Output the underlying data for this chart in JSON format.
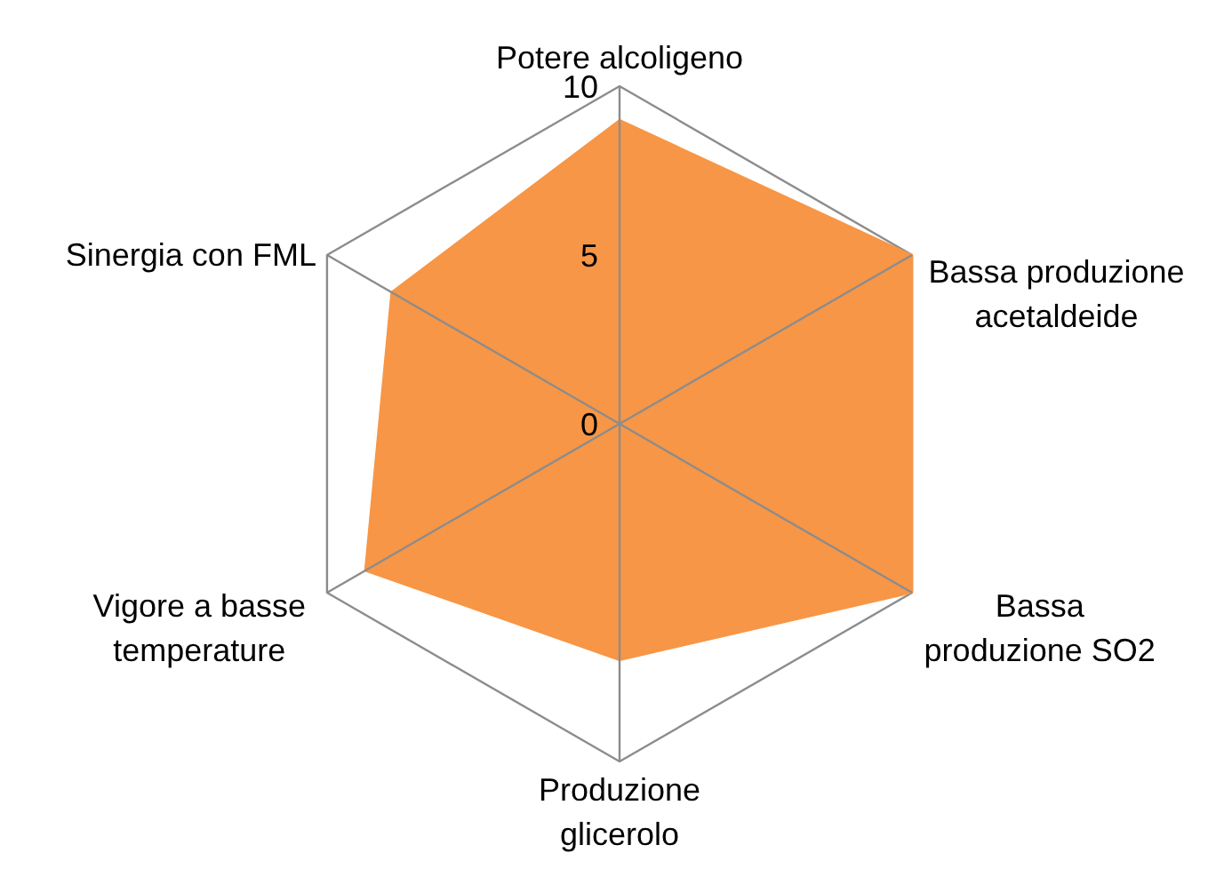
{
  "chart_data": {
    "type": "radar",
    "categories": [
      "Potere alcoligeno",
      "Bassa produzione\nacetaldeide",
      "Bassa\nproduzione SO2",
      "Produzione\nglicerolo",
      "Vigore a basse\ntemperature",
      "Sinergia con FML"
    ],
    "series": [
      {
        "color": "#f79646",
        "values": [
          9,
          10,
          10,
          7,
          8.7,
          7.8
        ]
      }
    ],
    "ylim": [
      0,
      10
    ],
    "yticks": [
      0,
      5,
      10
    ],
    "marker": "none"
  }
}
